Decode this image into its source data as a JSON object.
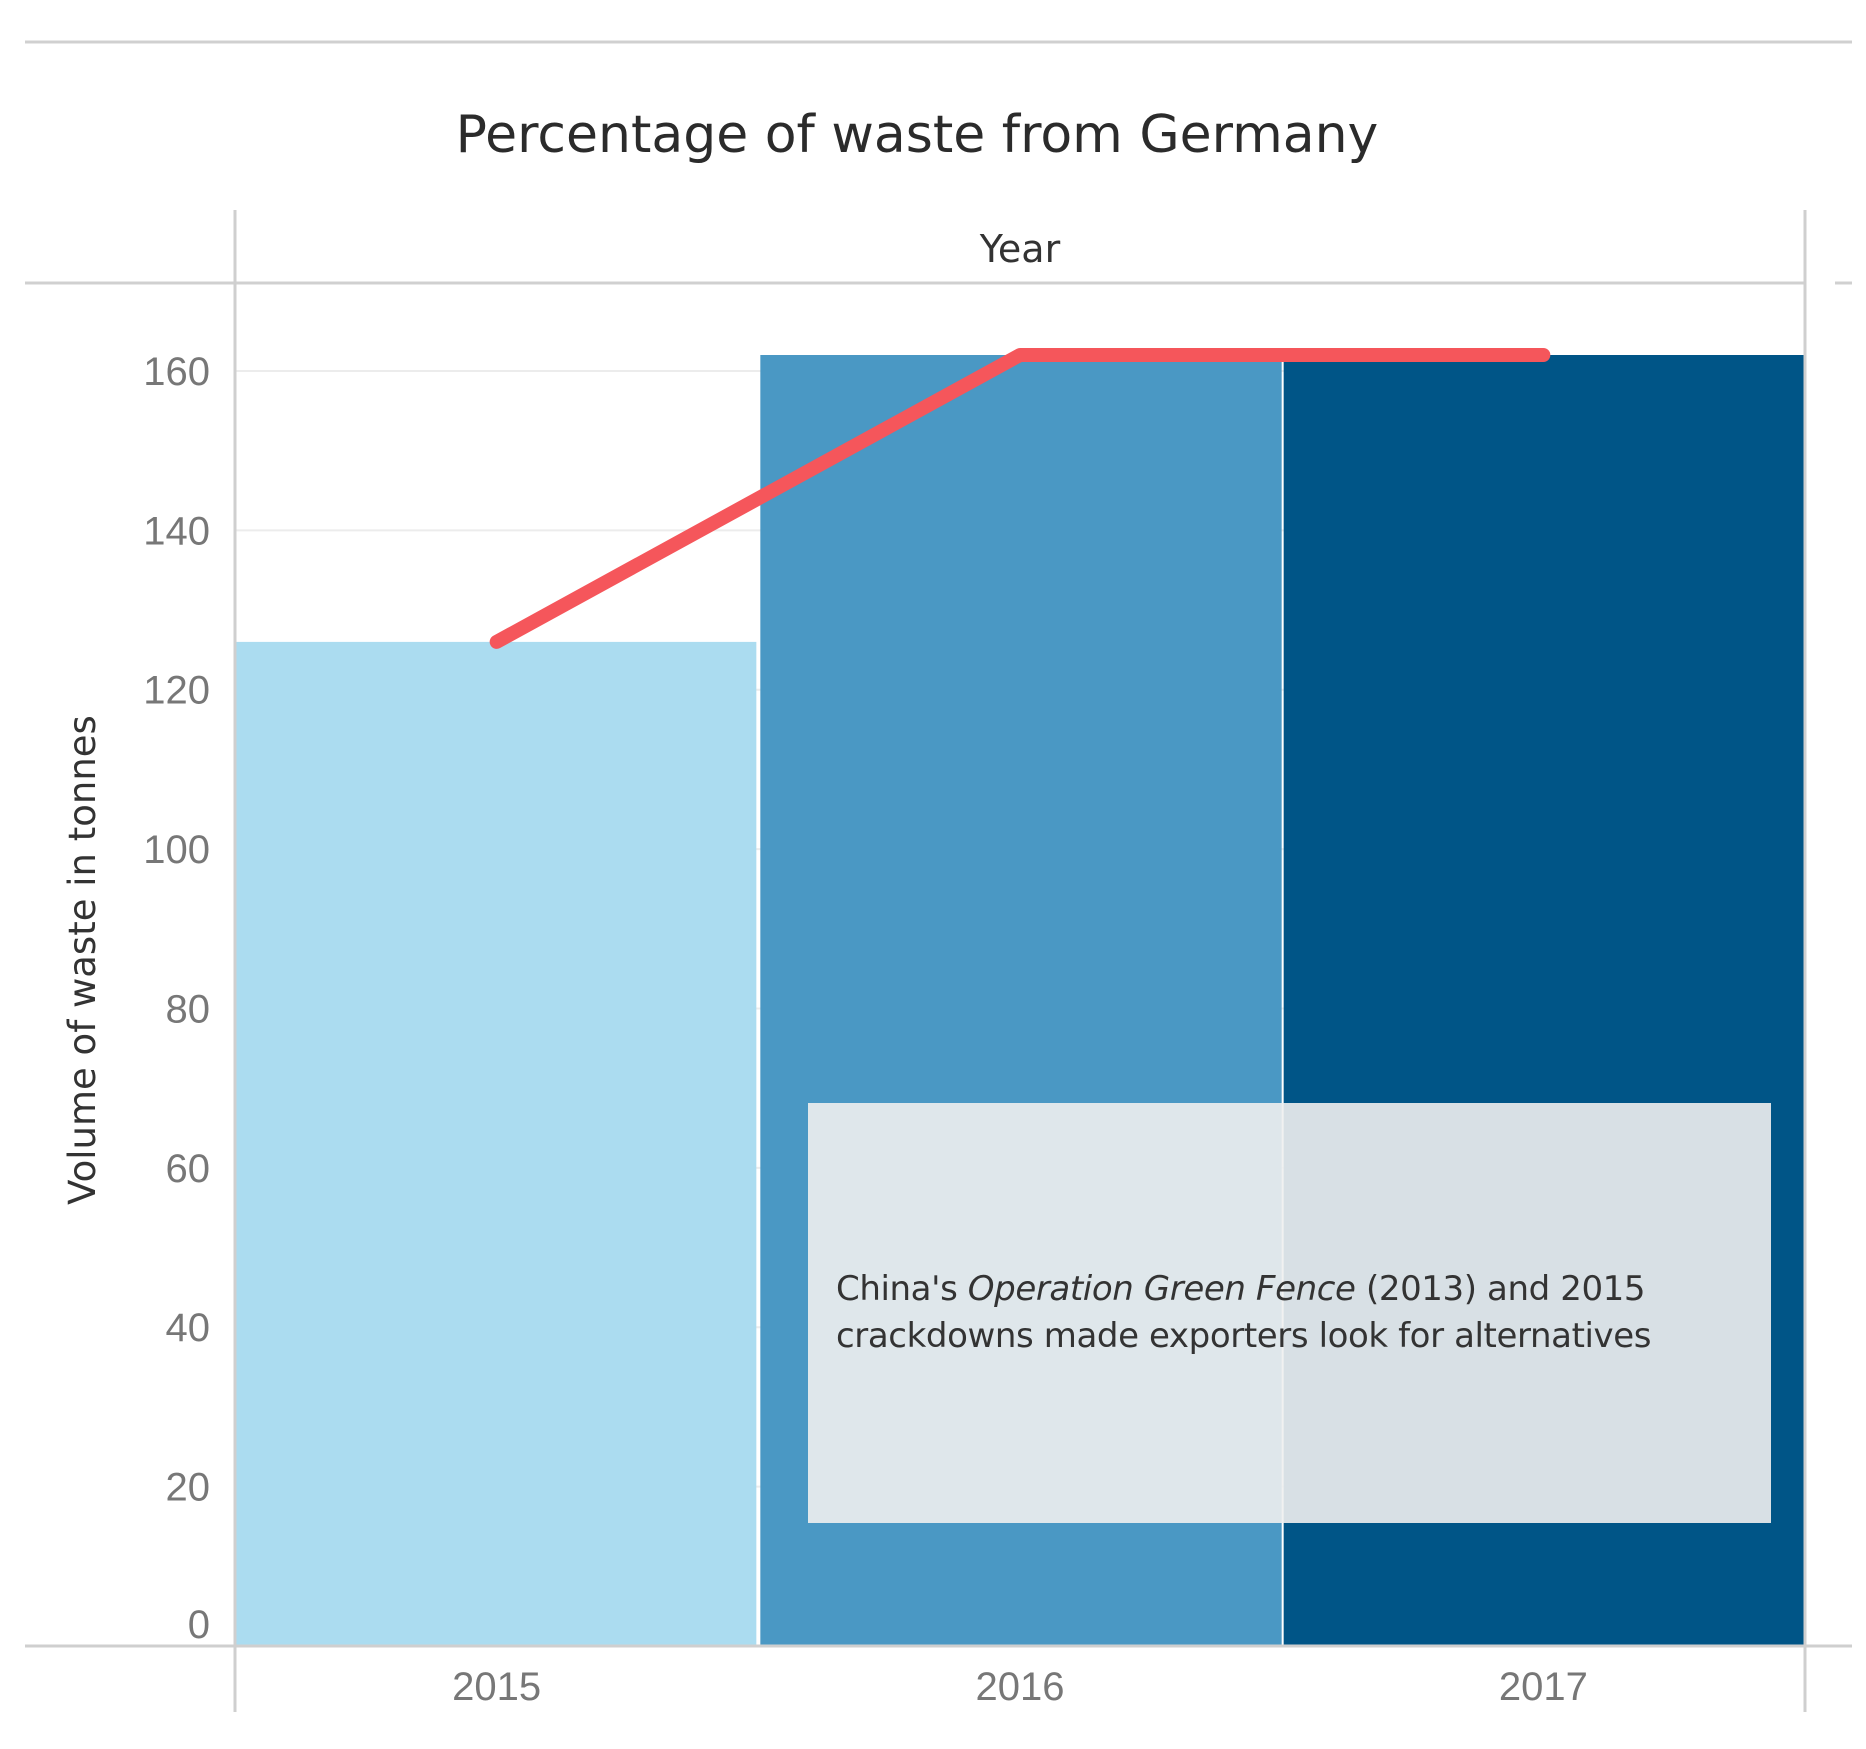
{
  "chart_data": {
    "type": "bar",
    "title": "Percentage of waste from Germany",
    "column_header": "Year",
    "xlabel": "",
    "ylabel": "Volume of waste in tonnes",
    "categories": [
      "2015",
      "2016",
      "2017"
    ],
    "values": [
      126,
      162,
      162
    ],
    "bar_colors": [
      "#abdcf0",
      "#4a98c4",
      "#005587"
    ],
    "line_series": {
      "color": "#f5565b",
      "values": [
        126,
        162,
        162
      ]
    },
    "ylim": [
      0,
      162
    ],
    "yticks": [
      0,
      20,
      40,
      60,
      80,
      100,
      120,
      140,
      160
    ],
    "grid": true,
    "annotation": {
      "text_before": "China's ",
      "text_italic": "Operation Green Fence",
      "text_after": " (2013) and 2015 crackdowns made exporters look for alternatives"
    }
  }
}
